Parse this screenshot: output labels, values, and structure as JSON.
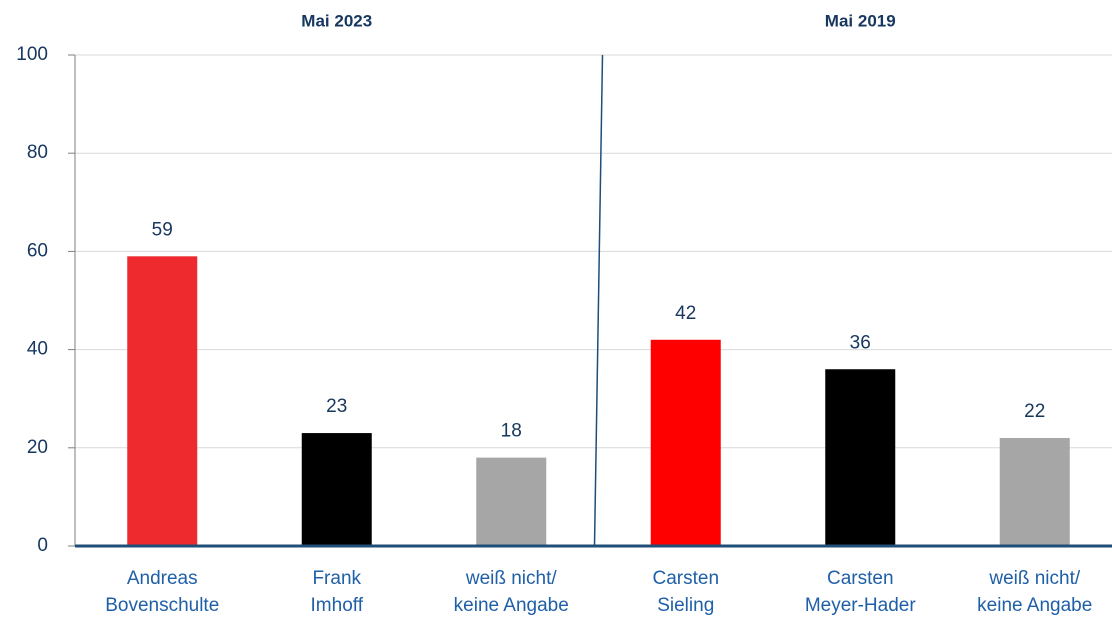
{
  "chart_data": {
    "type": "bar",
    "groups": [
      {
        "name": "Mai 2023",
        "count": 3
      },
      {
        "name": "Mai 2019",
        "count": 3
      }
    ],
    "categories": [
      [
        "Andreas",
        "Bovenschulte"
      ],
      [
        "Frank",
        "Imhoff"
      ],
      [
        "weiß nicht/",
        "keine Angabe"
      ],
      [
        "Carsten",
        "Sieling"
      ],
      [
        "Carsten",
        "Meyer-Hader"
      ],
      [
        "weiß nicht/",
        "keine Angabe"
      ]
    ],
    "values": [
      59,
      23,
      18,
      42,
      36,
      22
    ],
    "colors": [
      "#ee2a2e",
      "#000000",
      "#a6a6a6",
      "#ff0000",
      "#000000",
      "#a6a6a6"
    ],
    "ylim": [
      0,
      100
    ],
    "yticks": [
      0,
      20,
      40,
      60,
      80,
      100
    ],
    "grid": true
  }
}
